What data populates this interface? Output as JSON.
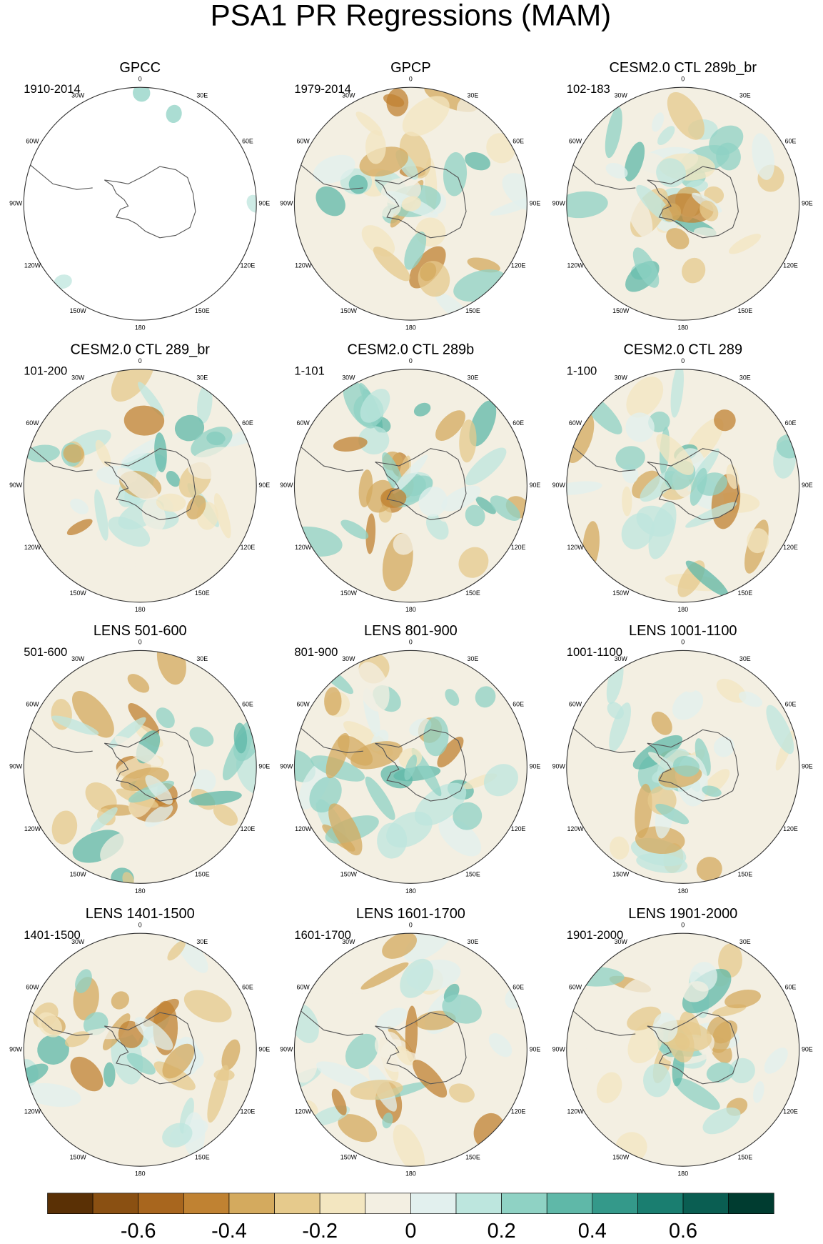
{
  "title": "PSA1 PR Regressions (MAM)",
  "panels": [
    {
      "title": "GPCC",
      "period": "1910-2014"
    },
    {
      "title": "GPCP",
      "period": "1979-2014"
    },
    {
      "title": "CESM2.0 CTL 289b_br",
      "period": "102-183"
    },
    {
      "title": "CESM2.0 CTL 289_br",
      "period": "101-200"
    },
    {
      "title": "CESM2.0 CTL 289b",
      "period": "1-101"
    },
    {
      "title": "CESM2.0 CTL 289",
      "period": "1-100"
    },
    {
      "title": "LENS 501-600",
      "period": "501-600"
    },
    {
      "title": "LENS 801-900",
      "period": "801-900"
    },
    {
      "title": "LENS 1001-1100",
      "period": "1001-1100"
    },
    {
      "title": "LENS 1401-1500",
      "period": "1401-1500"
    },
    {
      "title": "LENS 1601-1700",
      "period": "1601-1700"
    },
    {
      "title": "LENS 1901-2000",
      "period": "1901-2000"
    }
  ],
  "longitude_labels": [
    "0",
    "30E",
    "60E",
    "90E",
    "120E",
    "150E",
    "180",
    "150W",
    "120W",
    "90W",
    "60W",
    "30W"
  ],
  "colorbar": {
    "lim": [
      -0.8,
      0.8
    ],
    "ticks": [
      -0.6,
      -0.4,
      -0.2,
      0,
      0.2,
      0.4,
      0.6
    ],
    "colors": [
      "#5a3005",
      "#8a5012",
      "#a8661e",
      "#c08232",
      "#d4aa5e",
      "#e6ca8c",
      "#f3e6c0",
      "#f3efe2",
      "#e2f0ee",
      "#bde6de",
      "#8fd2c4",
      "#5fb8a8",
      "#34998a",
      "#1a7e70",
      "#0a5e52",
      "#003c30"
    ]
  }
}
